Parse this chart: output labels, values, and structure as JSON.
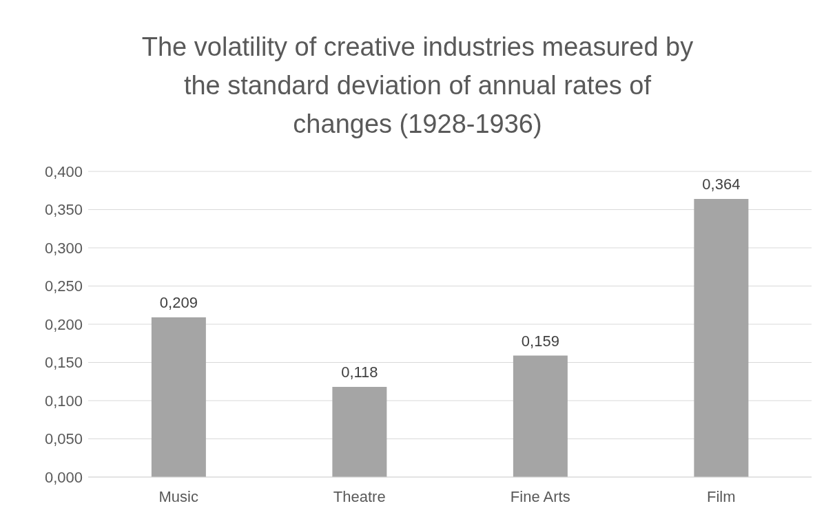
{
  "chart_data": {
    "type": "bar",
    "title": "The volatility of creative industries measured by the standard deviation of annual rates of changes (1928-1936)",
    "categories": [
      "Music",
      "Theatre",
      "Fine Arts",
      "Film"
    ],
    "values": [
      0.209,
      0.118,
      0.159,
      0.364
    ],
    "value_labels": [
      "0,209",
      "0,118",
      "0,159",
      "0,364"
    ],
    "color": "#a5a5a5",
    "ylim": [
      0,
      0.4
    ],
    "yticks": [
      {
        "value": 0,
        "label": "0,000"
      },
      {
        "value": 0.05,
        "label": "0,050"
      },
      {
        "value": 0.1,
        "label": "0,100"
      },
      {
        "value": 0.15,
        "label": "0,150"
      },
      {
        "value": 0.2,
        "label": "0,200"
      },
      {
        "value": 0.25,
        "label": "0,250"
      },
      {
        "value": 0.3,
        "label": "0,300"
      },
      {
        "value": 0.35,
        "label": "0,350"
      },
      {
        "value": 0.4,
        "label": "0,400"
      }
    ],
    "grid": "y",
    "legend": false
  }
}
